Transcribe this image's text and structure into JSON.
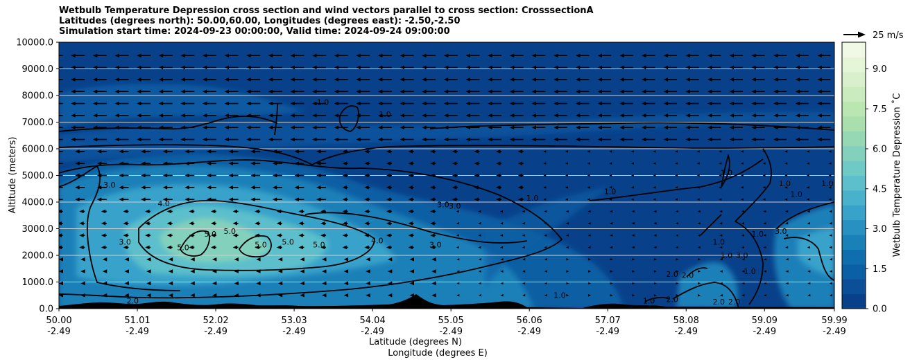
{
  "title_lines": [
    "Wetbulb Temperature Depression cross section and wind vectors parallel to cross section: CrosssectionA",
    "Latitudes (degrees north): 50.00,60.00, Longitudes (degrees east): -2.50,-2.50",
    "Simulation start time: 2024-09-23 00:00:00, Valid time: 2024-09-24 09:00:00"
  ],
  "chart_data": {
    "type": "heatmap",
    "title": "Wetbulb Temperature Depression cross section and wind vectors parallel to cross section: CrosssectionA",
    "ylabel": "Altitude (meters)",
    "xlabel_lines": [
      "Latitude (degrees N)",
      "Longitude (degrees E)"
    ],
    "ylim": [
      0,
      10000
    ],
    "y_ticks": [
      "0.0",
      "1000.0",
      "2000.0",
      "3000.0",
      "4000.0",
      "5000.0",
      "6000.0",
      "7000.0",
      "8000.0",
      "9000.0",
      "10000.0"
    ],
    "x_ticks_lat": [
      "50.00",
      "51.01",
      "52.02",
      "53.03",
      "54.04",
      "55.05",
      "56.06",
      "57.07",
      "58.08",
      "59.09",
      "59.99"
    ],
    "x_ticks_lon": [
      "-2.49",
      "-2.49",
      "-2.49",
      "-2.49",
      "-2.49",
      "-2.49",
      "-2.49",
      "-2.49",
      "-2.49",
      "-2.49",
      "-2.49"
    ],
    "colorbar": {
      "label": "Wetbulb Temperature Depression ˚C",
      "range": [
        0,
        10
      ],
      "ticks": [
        "0.0",
        "1.5",
        "3.0",
        "4.5",
        "6.0",
        "7.5",
        "9.0"
      ],
      "colors": [
        "#08418a",
        "#0a4f97",
        "#0b5fa4",
        "#0f6fae",
        "#1a80b8",
        "#2891c2",
        "#38a2ca",
        "#4ab1cd",
        "#5cbfcb",
        "#6fc9c4",
        "#83d1bc",
        "#96d8b3",
        "#a8dfac",
        "#b9e6b1",
        "#c9ecbf",
        "#d8f1cc",
        "#e5f5d8",
        "#f0f9e6"
      ]
    },
    "wind_reference": "25 m/s",
    "grid_y": true,
    "contour_labels": [
      {
        "text": "1.0",
        "lat": 53.4,
        "alt": 7650
      },
      {
        "text": "1.0",
        "lat": 54.2,
        "alt": 7200
      },
      {
        "text": "3.0",
        "lat": 50.65,
        "alt": 4550
      },
      {
        "text": "4.0",
        "lat": 51.35,
        "alt": 3850
      },
      {
        "text": "3.0",
        "lat": 50.85,
        "alt": 2400
      },
      {
        "text": "5.0",
        "lat": 51.6,
        "alt": 2200
      },
      {
        "text": "5.0",
        "lat": 51.95,
        "alt": 2700
      },
      {
        "text": "5.0",
        "lat": 52.2,
        "alt": 2800
      },
      {
        "text": "5.0",
        "lat": 52.6,
        "alt": 2300
      },
      {
        "text": "5.0",
        "lat": 52.95,
        "alt": 2400
      },
      {
        "text": "5.0",
        "lat": 53.35,
        "alt": 2300
      },
      {
        "text": "4.0",
        "lat": 54.1,
        "alt": 2450
      },
      {
        "text": "3.0",
        "lat": 54.95,
        "alt": 3800
      },
      {
        "text": "3.0",
        "lat": 55.1,
        "alt": 3750
      },
      {
        "text": "3.0",
        "lat": 54.85,
        "alt": 2300
      },
      {
        "text": "1.0",
        "lat": 56.1,
        "alt": 4050
      },
      {
        "text": "1.0",
        "lat": 57.1,
        "alt": 4300
      },
      {
        "text": "1.0",
        "lat": 56.45,
        "alt": 400
      },
      {
        "text": "1.0",
        "lat": 58.6,
        "alt": 5000
      },
      {
        "text": "1.0",
        "lat": 59.35,
        "alt": 4600
      },
      {
        "text": "1.0",
        "lat": 59.5,
        "alt": 4200
      },
      {
        "text": "1.0",
        "lat": 59.9,
        "alt": 4600
      },
      {
        "text": "3.0",
        "lat": 59.3,
        "alt": 2800
      },
      {
        "text": "1.0",
        "lat": 59.0,
        "alt": 2700
      },
      {
        "text": "3.0",
        "lat": 58.8,
        "alt": 1900
      },
      {
        "text": "1.0",
        "lat": 58.5,
        "alt": 2400
      },
      {
        "text": "1.0",
        "lat": 58.9,
        "alt": 1300
      },
      {
        "text": "2.0",
        "lat": 57.9,
        "alt": 1200
      },
      {
        "text": "2.0",
        "lat": 58.1,
        "alt": 1150
      },
      {
        "text": "1.0",
        "lat": 58.6,
        "alt": 1900
      },
      {
        "text": "1.0",
        "lat": 57.6,
        "alt": 200
      },
      {
        "text": "2.0",
        "lat": 57.9,
        "alt": 250
      },
      {
        "text": "2.0",
        "lat": 58.5,
        "alt": 150
      },
      {
        "text": "2.0",
        "lat": 58.7,
        "alt": 150
      },
      {
        "text": "2.0",
        "lat": 50.95,
        "alt": 200
      }
    ]
  }
}
